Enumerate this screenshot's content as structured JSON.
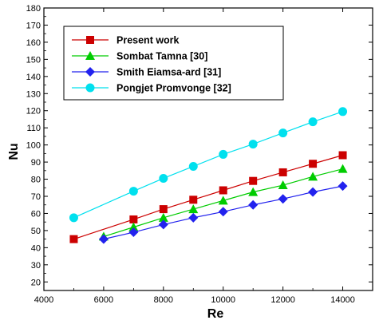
{
  "chart_data": {
    "type": "line",
    "xlabel": "Re",
    "ylabel": "Nu",
    "xlim": [
      4000,
      15000
    ],
    "ylim": [
      15,
      180
    ],
    "xticks": [
      4000,
      6000,
      8000,
      10000,
      12000,
      14000
    ],
    "yticks": [
      20,
      30,
      40,
      50,
      60,
      70,
      80,
      90,
      100,
      110,
      120,
      130,
      140,
      150,
      160,
      170,
      180
    ],
    "grid": false,
    "legend_position": "top-left",
    "series": [
      {
        "name": "Present work",
        "color": "#cc0000",
        "marker": "square",
        "x": [
          5000,
          7000,
          8000,
          9000,
          10000,
          11000,
          12000,
          13000,
          14000
        ],
        "y": [
          45,
          56.5,
          62.5,
          68,
          73.5,
          79,
          84,
          89,
          94
        ]
      },
      {
        "name": "Sombat Tamna [30]",
        "color": "#00cc00",
        "marker": "triangle",
        "x": [
          6000,
          7000,
          8000,
          9000,
          10000,
          11000,
          12000,
          13000,
          14000
        ],
        "y": [
          46.5,
          52,
          57.5,
          62.5,
          67.5,
          72.5,
          76.5,
          81.5,
          86
        ]
      },
      {
        "name": "Smith Eiamsa-ard [31]",
        "color": "#2222ee",
        "marker": "diamond",
        "x": [
          6000,
          7000,
          8000,
          9000,
          10000,
          11000,
          12000,
          13000,
          14000
        ],
        "y": [
          45,
          49,
          53.5,
          57.5,
          61,
          65,
          68.5,
          72.5,
          76
        ]
      },
      {
        "name": "Pongjet Promvonge [32]",
        "color": "#00e0ee",
        "marker": "circle",
        "x": [
          5000,
          7000,
          8000,
          9000,
          10000,
          11000,
          12000,
          13000,
          14000
        ],
        "y": [
          57.5,
          73,
          80.5,
          87.5,
          94.5,
          100.5,
          107,
          113.5,
          119.5
        ]
      }
    ]
  }
}
